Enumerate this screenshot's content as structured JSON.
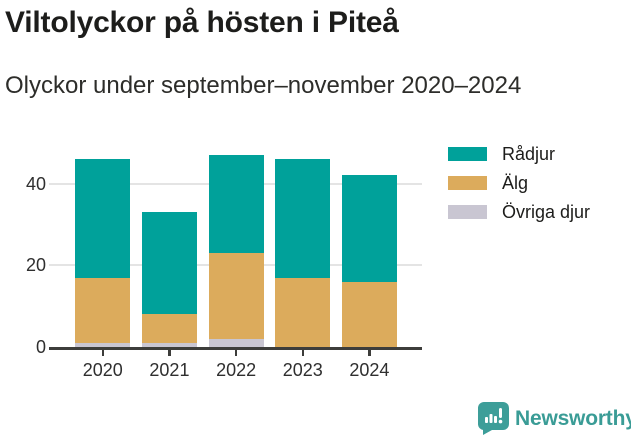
{
  "header": {
    "title": "Viltolyckor på hösten i Piteå",
    "subtitle": "Olyckor under september–november 2020–2024"
  },
  "chart_data": {
    "type": "bar",
    "stacked": true,
    "title": "Viltolyckor på hösten i Piteå",
    "subtitle": "Olyckor under september–november 2020–2024",
    "categories": [
      "2020",
      "2021",
      "2022",
      "2023",
      "2024"
    ],
    "series": [
      {
        "name": "Rådjur",
        "color": "#00a19a",
        "values": [
          29,
          25,
          24,
          29,
          26
        ]
      },
      {
        "name": "Älg",
        "color": "#dcab5c",
        "values": [
          16,
          7,
          21,
          17,
          16
        ]
      },
      {
        "name": "Övriga djur",
        "color": "#c9c6d2",
        "values": [
          1,
          1,
          2,
          0,
          0
        ]
      }
    ],
    "stack_order_bottom_to_top": [
      "Övriga djur",
      "Älg",
      "Rådjur"
    ],
    "totals": [
      46,
      33,
      47,
      46,
      42
    ],
    "xlabel": "",
    "ylabel": "",
    "y_ticks": [
      0,
      20,
      40
    ],
    "ylim": [
      0,
      48
    ],
    "grid": "horizontal-light",
    "legend_position": "right",
    "colors": {
      "axis": "#3d3d3b",
      "gridline": "#e4e4e4",
      "tick_label": "#2f2f2f"
    }
  },
  "footer": {
    "brand": "Newsworthy",
    "brand_color": "#3a9c96",
    "logo_icon": "bar-chart-speech-bubble-icon"
  }
}
